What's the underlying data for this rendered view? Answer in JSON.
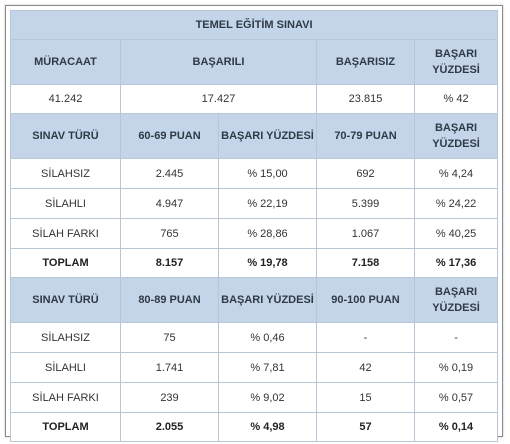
{
  "title": "TEMEL EĞİTİM SINAVI",
  "summary": {
    "headers": [
      "MÜRACAAT",
      "BAŞARILI",
      "BAŞARISIZ",
      "BAŞARI YÜZDESİ"
    ],
    "values": [
      "41.242",
      "17.427",
      "23.815",
      "% 42"
    ]
  },
  "section1": {
    "headers": [
      "SINAV TÜRÜ",
      "60-69 PUAN",
      "BAŞARI YÜZDESİ",
      "70-79 PUAN",
      "BAŞARI YÜZDESİ"
    ],
    "rows": [
      [
        "SİLAHSIZ",
        "2.445",
        "% 15,00",
        "692",
        "% 4,24"
      ],
      [
        "SİLAHLI",
        "4.947",
        "% 22,19",
        "5.399",
        "% 24,22"
      ],
      [
        "SİLAH FARKI",
        "765",
        "% 28,86",
        "1.067",
        "% 40,25"
      ]
    ],
    "total": [
      "TOPLAM",
      "8.157",
      "% 19,78",
      "7.158",
      "% 17,36"
    ]
  },
  "section2": {
    "headers": [
      "SINAV TÜRÜ",
      "80-89 PUAN",
      "BAŞARI YÜZDESİ",
      "90-100 PUAN",
      "BAŞARI YÜZDESİ"
    ],
    "rows": [
      [
        "SİLAHSIZ",
        "75",
        "% 0,46",
        "-",
        "-"
      ],
      [
        "SİLAHLI",
        "1.741",
        "% 7,81",
        "42",
        "% 0,19"
      ],
      [
        "SİLAH FARKI",
        "239",
        "% 9,02",
        "15",
        "% 0,57"
      ]
    ],
    "total": [
      "TOPLAM",
      "2.055",
      "% 4,98",
      "57",
      "% 0,14"
    ]
  }
}
